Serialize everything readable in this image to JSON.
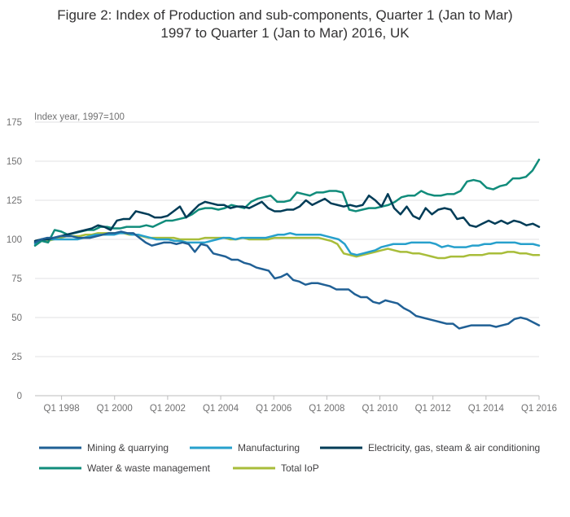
{
  "title_line1": "Figure 2: Index of Production and sub-components, Quarter 1 (Jan to Mar)",
  "title_line2": "1997 to Quarter 1 (Jan to Mar) 2016, UK",
  "chart_data": {
    "type": "line",
    "ylabel": "Index year, 1997=100",
    "ylim": [
      0,
      175
    ],
    "yticks": [
      0,
      25,
      50,
      75,
      100,
      125,
      150,
      175
    ],
    "x_start": "Q1 1997",
    "x_end": "Q1 2016",
    "xticks": [
      "Q1 1998",
      "Q1 2000",
      "Q1 2002",
      "Q1 2004",
      "Q1 2006",
      "Q1 2008",
      "Q1 2010",
      "Q1 2012",
      "Q1 2014",
      "Q1 2016"
    ],
    "grid": "horizontal",
    "legend_position": "bottom",
    "series": [
      {
        "name": "Mining & quarrying",
        "color": "#206095",
        "values": [
          98,
          100,
          101,
          101,
          102,
          102,
          102,
          101,
          101,
          101,
          102,
          103,
          104,
          104,
          105,
          104,
          104,
          101,
          98,
          96,
          97,
          98,
          98,
          97,
          98,
          97,
          92,
          97,
          96,
          91,
          90,
          89,
          87,
          87,
          85,
          84,
          82,
          81,
          80,
          75,
          76,
          78,
          74,
          73,
          71,
          72,
          72,
          71,
          70,
          68,
          68,
          68,
          65,
          63,
          63,
          60,
          59,
          61,
          60,
          59,
          56,
          54,
          51,
          50,
          49,
          48,
          47,
          46,
          46,
          43,
          44,
          45,
          45,
          45,
          45,
          44,
          45,
          46,
          49,
          50,
          49,
          47,
          45
        ]
      },
      {
        "name": "Manufacturing",
        "color": "#27a0cc",
        "values": [
          97,
          99,
          100,
          100,
          100,
          100,
          100,
          100,
          101,
          102,
          103,
          103,
          103,
          103,
          104,
          104,
          103,
          103,
          102,
          101,
          100,
          100,
          100,
          99,
          99,
          98,
          98,
          98,
          98,
          99,
          100,
          101,
          101,
          100,
          101,
          101,
          101,
          101,
          101,
          102,
          103,
          103,
          104,
          103,
          103,
          103,
          103,
          103,
          102,
          101,
          100,
          97,
          91,
          90,
          91,
          92,
          93,
          95,
          96,
          97,
          97,
          97,
          98,
          98,
          98,
          98,
          97,
          95,
          96,
          95,
          95,
          95,
          96,
          96,
          97,
          97,
          98,
          98,
          98,
          98,
          97,
          97,
          97,
          96
        ]
      },
      {
        "name": "Electricity, gas, steam & air conditioning",
        "color": "#003c57",
        "values": [
          99,
          100,
          100,
          101,
          102,
          103,
          104,
          105,
          106,
          107,
          109,
          108,
          106,
          112,
          113,
          113,
          118,
          117,
          116,
          114,
          114,
          115,
          118,
          121,
          114,
          118,
          122,
          124,
          123,
          122,
          122,
          120,
          121,
          121,
          120,
          122,
          124,
          120,
          118,
          118,
          119,
          119,
          121,
          125,
          122,
          124,
          126,
          123,
          122,
          121,
          122,
          121,
          122,
          128,
          125,
          121,
          129,
          120,
          116,
          121,
          115,
          113,
          120,
          116,
          119,
          120,
          119,
          113,
          114,
          109,
          108,
          110,
          112,
          110,
          112,
          110,
          112,
          111,
          109,
          110,
          108
        ]
      },
      {
        "name": "Water & waste management",
        "color": "#118c7b",
        "values": [
          96,
          99,
          98,
          106,
          105,
          103,
          104,
          105,
          106,
          106,
          108,
          108,
          107,
          107,
          108,
          108,
          108,
          109,
          108,
          110,
          112,
          112,
          113,
          114,
          116,
          119,
          120,
          120,
          119,
          120,
          122,
          121,
          120,
          124,
          126,
          127,
          128,
          124,
          124,
          125,
          130,
          129,
          128,
          130,
          130,
          131,
          131,
          130,
          119,
          118,
          119,
          120,
          120,
          121,
          122,
          124,
          127,
          128,
          128,
          131,
          129,
          128,
          128,
          129,
          129,
          131,
          137,
          138,
          137,
          133,
          132,
          134,
          135,
          139,
          139,
          140,
          144,
          151
        ]
      },
      {
        "name": "Total IoP",
        "color": "#a8bd3a",
        "values": [
          98,
          99,
          99,
          100,
          101,
          102,
          102,
          102,
          103,
          103,
          104,
          104,
          104,
          104,
          104,
          103,
          103,
          102,
          101,
          101,
          101,
          101,
          101,
          100,
          100,
          100,
          100,
          101,
          101,
          101,
          101,
          100,
          100,
          101,
          100,
          100,
          100,
          100,
          101,
          101,
          101,
          101,
          101,
          101,
          101,
          101,
          100,
          99,
          97,
          91,
          90,
          89,
          90,
          91,
          92,
          93,
          94,
          93,
          92,
          92,
          91,
          91,
          90,
          89,
          88,
          88,
          89,
          89,
          89,
          90,
          90,
          90,
          91,
          91,
          91,
          92,
          92,
          91,
          91,
          90,
          90
        ]
      }
    ]
  }
}
